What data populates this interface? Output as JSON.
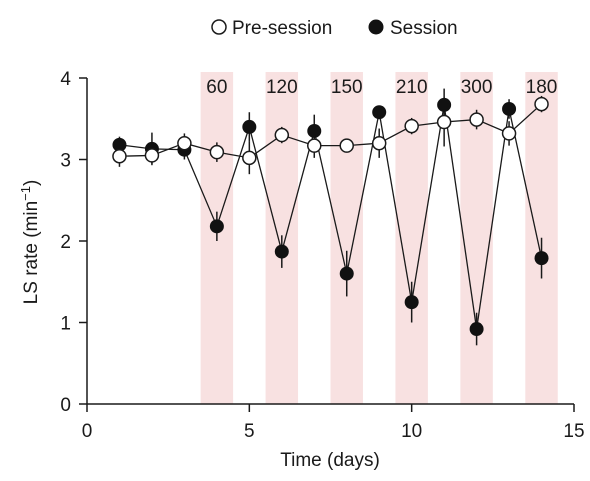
{
  "chart_data": {
    "type": "scatter",
    "xlabel": "Time (days)",
    "ylabel": "LS rate (min",
    "ylabel_sup": "−1",
    "ylabel_close": ")",
    "xlim": [
      0,
      15
    ],
    "ylim": [
      0,
      4
    ],
    "xticks": [
      0,
      5,
      10,
      15
    ],
    "xtick_labels": [
      "0",
      "5",
      "10",
      "15"
    ],
    "yticks": [
      0,
      1,
      2,
      3,
      4
    ],
    "ytick_labels": [
      "0",
      "1",
      "2",
      "3",
      "4"
    ],
    "grid": false,
    "legend_position": "top-center",
    "legend": [
      {
        "name": "Pre-session",
        "marker": "open-circle"
      },
      {
        "name": "Session",
        "marker": "filled-circle"
      }
    ],
    "bands": [
      {
        "center": 4,
        "label": "60"
      },
      {
        "center": 6,
        "label": "120"
      },
      {
        "center": 8,
        "label": "150"
      },
      {
        "center": 10,
        "label": "210"
      },
      {
        "center": 12,
        "label": "300"
      },
      {
        "center": 14,
        "label": "180"
      }
    ],
    "band_color": "#f8e1e1",
    "series": [
      {
        "name": "Session",
        "marker": "filled-circle",
        "x": [
          1,
          2,
          3,
          4,
          5,
          6,
          7,
          8,
          9,
          10,
          11,
          12,
          13,
          14
        ],
        "y": [
          3.18,
          3.13,
          3.12,
          2.18,
          3.4,
          1.87,
          3.35,
          1.6,
          3.58,
          1.25,
          3.67,
          0.92,
          3.62,
          1.79
        ],
        "err": [
          0.1,
          0.2,
          0.12,
          0.18,
          0.18,
          0.2,
          0.2,
          0.28,
          0.08,
          0.25,
          0.2,
          0.2,
          0.12,
          0.25
        ]
      },
      {
        "name": "Pre-session",
        "marker": "open-circle",
        "x": [
          1,
          2,
          3,
          4,
          5,
          6,
          7,
          8,
          9,
          10,
          11,
          12,
          13,
          14
        ],
        "y": [
          3.04,
          3.05,
          3.2,
          3.09,
          3.02,
          3.3,
          3.17,
          3.17,
          3.2,
          3.41,
          3.46,
          3.49,
          3.32,
          3.68
        ],
        "err": [
          0.13,
          0.1,
          0.12,
          0.12,
          0.2,
          0.1,
          0.15,
          0.08,
          0.18,
          0.1,
          0.3,
          0.12,
          0.15,
          0.1
        ]
      }
    ]
  }
}
